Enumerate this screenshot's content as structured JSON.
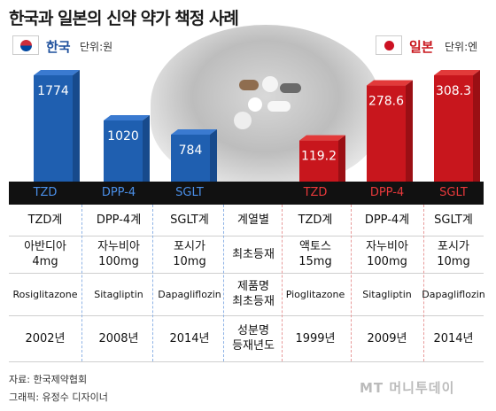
{
  "title": "한국과 일본의 신약 약가 책정 사례",
  "korea": {
    "name": "한국",
    "unit": "단위:원"
  },
  "japan": {
    "name": "일본",
    "unit": "단위:엔"
  },
  "row_labels": [
    "",
    "계열별",
    "최초등재",
    "제품명\n최초등재",
    "성분명\n등재년도"
  ],
  "columns": [
    {
      "class": "TZD",
      "class_full": "TZD계",
      "product": "아반디아\n4mg",
      "ingredient": "Rosiglitazone",
      "year": "2002년"
    },
    {
      "class": "DPP-4",
      "class_full": "DPP-4계",
      "product": "자누비아\n100mg",
      "ingredient": "Sitagliptin",
      "year": "2008년"
    },
    {
      "class": "SGLT",
      "class_full": "SGLT계",
      "product": "포시가\n10mg",
      "ingredient": "Dapagliflozin",
      "year": "2014년"
    },
    {
      "class": "TZD",
      "class_full": "TZD계",
      "product": "액토스\n15mg",
      "ingredient": "Pioglitazone",
      "year": "1999년"
    },
    {
      "class": "DPP-4",
      "class_full": "DPP-4계",
      "product": "자누비아\n100mg",
      "ingredient": "Sitagliptin",
      "year": "2009년"
    },
    {
      "class": "SGLT",
      "class_full": "SGLT계",
      "product": "포시가\n10mg",
      "ingredient": "Dapagliflozin",
      "year": "2014년"
    }
  ],
  "chart_data": [
    {
      "type": "bar",
      "categories": [
        "TZD",
        "DPP-4",
        "SGLT"
      ],
      "values": [
        1774,
        1020,
        784
      ],
      "value_labels": [
        "1774",
        "1020",
        "784"
      ],
      "unit": "단위:원",
      "color": "#1f5fb0"
    },
    {
      "type": "bar",
      "categories": [
        "TZD",
        "DPP-4",
        "SGLT"
      ],
      "values": [
        119.2,
        278.6,
        308.3
      ],
      "value_labels": [
        "119.2",
        "278.6",
        "308.3"
      ],
      "unit": "단위:엔",
      "color": "#c8161d"
    }
  ],
  "colors": {
    "korea_text": "#1d4f9c",
    "korea_bar": "#1f5fb0",
    "japan_text": "#c8161d",
    "japan_bar": "#c8161d",
    "header_bg": "#111111"
  },
  "source": "자료: 한국제약협회",
  "credit": "그래픽: 유정수 디자이너",
  "brand": "MT 머니투데이"
}
